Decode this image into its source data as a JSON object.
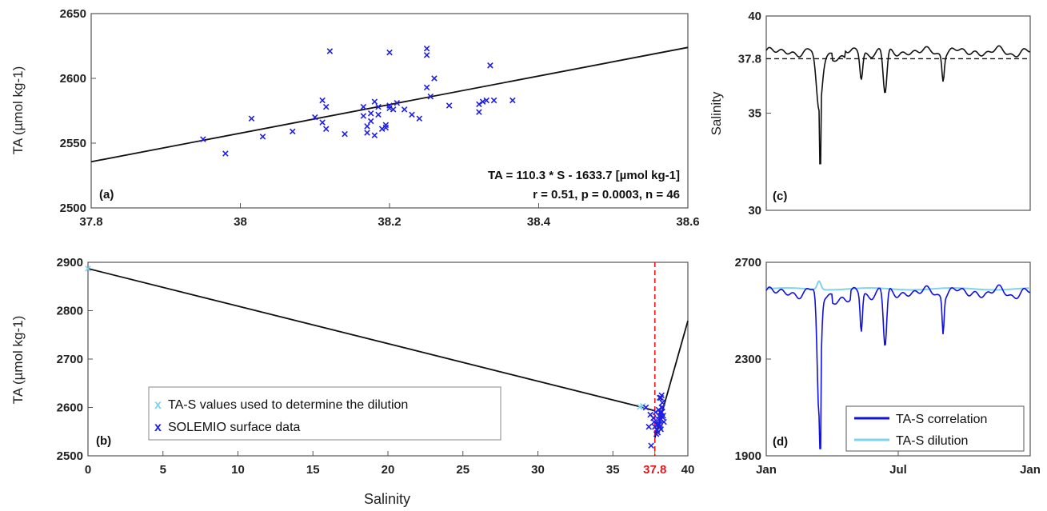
{
  "chart_data": [
    {
      "id": "a",
      "type": "scatter",
      "panel_label": "(a)",
      "ylabel": "TA (µmol kg-1)",
      "xlim": [
        37.8,
        38.6
      ],
      "ylim": [
        2500,
        2650
      ],
      "x_ticks": [
        "37.8",
        "38",
        "38.2",
        "38.4",
        "38.6"
      ],
      "y_ticks": [
        "2500",
        "2550",
        "2600",
        "2650"
      ],
      "equation_line1": "TA = 110.3 * S  - 1633.7 [µmol kg-1]",
      "equation_line2": "r = 0.51, p = 0.0003, n = 46",
      "fit": {
        "slope": 110.3,
        "intercept": -1633.7
      },
      "series": [
        {
          "marker": "x",
          "color": "#1f1fe6",
          "points": [
            [
              37.95,
              2553
            ],
            [
              37.98,
              2542
            ],
            [
              38.015,
              2569
            ],
            [
              38.03,
              2555
            ],
            [
              38.07,
              2559
            ],
            [
              38.1,
              2570
            ],
            [
              38.11,
              2566
            ],
            [
              38.11,
              2583
            ],
            [
              38.115,
              2561
            ],
            [
              38.115,
              2578
            ],
            [
              38.12,
              2621
            ],
            [
              38.14,
              2557
            ],
            [
              38.165,
              2578
            ],
            [
              38.165,
              2571
            ],
            [
              38.17,
              2563
            ],
            [
              38.17,
              2558
            ],
            [
              38.175,
              2567
            ],
            [
              38.175,
              2573
            ],
            [
              38.18,
              2582
            ],
            [
              38.185,
              2578
            ],
            [
              38.185,
              2572
            ],
            [
              38.18,
              2556
            ],
            [
              38.19,
              2561
            ],
            [
              38.195,
              2564
            ],
            [
              38.195,
              2562
            ],
            [
              38.2,
              2577
            ],
            [
              38.2,
              2579
            ],
            [
              38.2,
              2620
            ],
            [
              38.21,
              2581
            ],
            [
              38.22,
              2576
            ],
            [
              38.23,
              2572
            ],
            [
              38.24,
              2569
            ],
            [
              38.25,
              2593
            ],
            [
              38.25,
              2623
            ],
            [
              38.25,
              2618
            ],
            [
              38.26,
              2600
            ],
            [
              38.28,
              2579
            ],
            [
              38.32,
              2574
            ],
            [
              38.32,
              2580
            ],
            [
              38.325,
              2582
            ],
            [
              38.33,
              2583
            ],
            [
              38.335,
              2610
            ],
            [
              38.34,
              2583
            ],
            [
              38.365,
              2583
            ],
            [
              38.255,
              2586
            ],
            [
              38.205,
              2576
            ]
          ]
        }
      ]
    },
    {
      "id": "b",
      "type": "scatter",
      "panel_label": "(b)",
      "xlabel": "Salinity",
      "ylabel": "TA (µmol kg-1)",
      "xlim": [
        0,
        40
      ],
      "ylim": [
        2500,
        2900
      ],
      "x_ticks": [
        "0",
        "5",
        "10",
        "15",
        "20",
        "25",
        "30",
        "35",
        "37.8",
        "40"
      ],
      "y_ticks": [
        "2500",
        "2600",
        "2700",
        "2800",
        "2900"
      ],
      "highlight_tick": "37.8",
      "vline": 37.8,
      "lines": [
        {
          "name": "dilution",
          "points": [
            [
              0,
              2887
            ],
            [
              37.0,
              2600
            ],
            [
              37.8,
              2593
            ]
          ]
        },
        {
          "name": "correlation",
          "points": [
            [
              37.8,
              2537
            ],
            [
              40,
              2779
            ]
          ]
        }
      ],
      "legend": [
        "TA-S values used to determine the dilution",
        "SOLEMIO surface data"
      ],
      "series": [
        {
          "name": "TA-S values used to determine the dilution",
          "marker": "x",
          "color": "#7fd3ee",
          "points": [
            [
              0,
              2887
            ],
            [
              36.8,
              2601
            ],
            [
              37.0,
              2603
            ]
          ]
        },
        {
          "name": "SOLEMIO surface data",
          "marker": "x",
          "color": "#1f1fe6",
          "points": [
            [
              37.2,
              2600
            ],
            [
              37.4,
              2560
            ],
            [
              37.5,
              2585
            ],
            [
              37.55,
              2521
            ],
            [
              37.7,
              2578
            ],
            [
              37.75,
              2570
            ],
            [
              37.8,
              2560
            ],
            [
              37.85,
              2590
            ],
            [
              37.9,
              2545
            ],
            [
              37.95,
              2553
            ],
            [
              38.0,
              2565
            ],
            [
              38.05,
              2575
            ],
            [
              38.1,
              2582
            ],
            [
              38.12,
              2620
            ],
            [
              38.15,
              2560
            ],
            [
              38.2,
              2575
            ],
            [
              38.2,
              2620
            ],
            [
              38.25,
              2600
            ],
            [
              38.25,
              2590
            ],
            [
              38.3,
              2580
            ],
            [
              38.3,
              2610
            ],
            [
              38.35,
              2583
            ],
            [
              38.4,
              2570
            ],
            [
              38.1,
              2565
            ],
            [
              38.15,
              2590
            ],
            [
              38.2,
              2555
            ],
            [
              38.25,
              2625
            ],
            [
              38.3,
              2600
            ],
            [
              38.0,
              2548
            ],
            [
              38.05,
              2595
            ]
          ]
        }
      ]
    },
    {
      "id": "c",
      "type": "line",
      "panel_label": "(c)",
      "ylabel": "Salinity",
      "ylim": [
        30,
        40
      ],
      "y_ticks": [
        "30",
        "35",
        "37.8",
        "40"
      ],
      "dashed_level": 37.8,
      "color": "#111111",
      "baseline": 38.15,
      "dips": [
        [
          0.2,
          0.03,
          35.0
        ],
        [
          0.36,
          0.015,
          36.8
        ],
        [
          0.45,
          0.02,
          35.9
        ],
        [
          0.67,
          0.012,
          36.9
        ]
      ]
    },
    {
      "id": "d",
      "type": "line",
      "panel_label": "(d)",
      "xlabel_ticks": [
        "Jan",
        "Jul",
        "Jan"
      ],
      "ylim": [
        1900,
        2700
      ],
      "y_ticks": [
        "1900",
        "2300",
        "2700"
      ],
      "legend": [
        "TA-S correlation",
        "TA-S dilution"
      ],
      "series": [
        {
          "name": "TA-S correlation",
          "color": "#1010e0",
          "baseline": 2575
        },
        {
          "name": "TA-S dilution",
          "color": "#7fd3ee",
          "baseline": 2590
        }
      ]
    }
  ]
}
